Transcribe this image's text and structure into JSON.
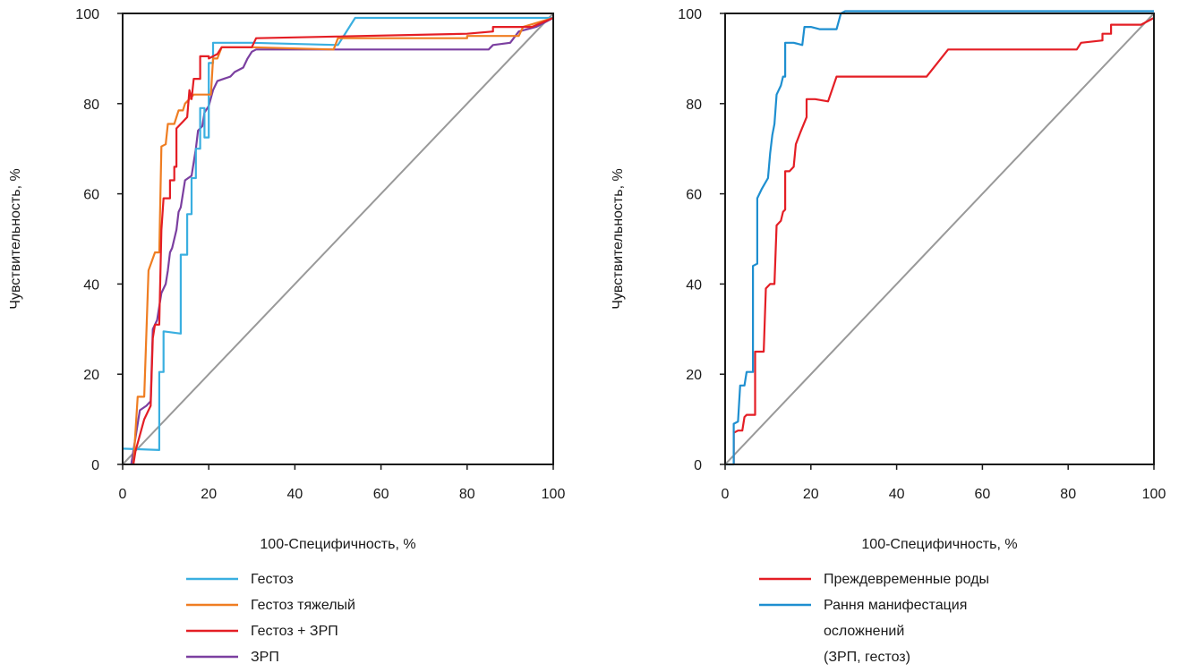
{
  "chart_data": [
    {
      "type": "line",
      "title": "",
      "xlabel": "100-Специфичность, %",
      "ylabel": "Чувствительность, %",
      "xlim": [
        0,
        100
      ],
      "ylim": [
        0,
        100
      ],
      "xticks": [
        "0",
        "20",
        "40",
        "60",
        "80",
        "100"
      ],
      "yticks": [
        "0",
        "20",
        "40",
        "60",
        "80",
        "100"
      ],
      "grid": false,
      "legend_position": "below",
      "reference_line": {
        "color": "#999999",
        "points": [
          [
            0,
            0
          ],
          [
            100,
            100
          ]
        ]
      },
      "series": [
        {
          "name": "Гестоз",
          "color": "#3aafe0",
          "points": [
            [
              0,
              3.5
            ],
            [
              8.5,
              3.2
            ],
            [
              8.5,
              20.5
            ],
            [
              9.5,
              20.5
            ],
            [
              9.5,
              29.5
            ],
            [
              13.5,
              29
            ],
            [
              13.5,
              46.5
            ],
            [
              15,
              46.5
            ],
            [
              15,
              55.5
            ],
            [
              16,
              55.5
            ],
            [
              16,
              63.5
            ],
            [
              17,
              63.5
            ],
            [
              17,
              70
            ],
            [
              18,
              70
            ],
            [
              18,
              79
            ],
            [
              19,
              79
            ],
            [
              19,
              72.5
            ],
            [
              20,
              72.5
            ],
            [
              20,
              89
            ],
            [
              21,
              89
            ],
            [
              21,
              93.5
            ],
            [
              22,
              93.5
            ],
            [
              30,
              93.5
            ],
            [
              50,
              93
            ],
            [
              54,
              99
            ],
            [
              100,
              99
            ]
          ]
        },
        {
          "name": "Гестоз тяжелый",
          "color": "#ef7d22",
          "points": [
            [
              2.5,
              0
            ],
            [
              3.5,
              15
            ],
            [
              5,
              15
            ],
            [
              6,
              43
            ],
            [
              7.5,
              47
            ],
            [
              8.5,
              47
            ],
            [
              9,
              70.5
            ],
            [
              10,
              71
            ],
            [
              10.5,
              75.5
            ],
            [
              12,
              75.5
            ],
            [
              13,
              78.5
            ],
            [
              14,
              78.5
            ],
            [
              14.5,
              80
            ],
            [
              15.5,
              81
            ],
            [
              16.5,
              82
            ],
            [
              20.5,
              82
            ],
            [
              21,
              90
            ],
            [
              22,
              90
            ],
            [
              23,
              92.5
            ],
            [
              30,
              92.5
            ],
            [
              49,
              92
            ],
            [
              50,
              94.5
            ],
            [
              80,
              94.5
            ],
            [
              80,
              95
            ],
            [
              92,
              95
            ],
            [
              93,
              97
            ],
            [
              100,
              99
            ]
          ]
        },
        {
          "name": "Гестоз + ЗРП",
          "color": "#e41e25",
          "points": [
            [
              2.5,
              0
            ],
            [
              3,
              3
            ],
            [
              5,
              10
            ],
            [
              6,
              12
            ],
            [
              6.5,
              13
            ],
            [
              7,
              28
            ],
            [
              7.5,
              31
            ],
            [
              8.5,
              31
            ],
            [
              9,
              52
            ],
            [
              9.5,
              59
            ],
            [
              11,
              59
            ],
            [
              11,
              63
            ],
            [
              12,
              63
            ],
            [
              12,
              66
            ],
            [
              12.5,
              66
            ],
            [
              12.5,
              74.5
            ],
            [
              14,
              76
            ],
            [
              15,
              77
            ],
            [
              15.5,
              83
            ],
            [
              16,
              81
            ],
            [
              16.5,
              85.5
            ],
            [
              18,
              85.5
            ],
            [
              18,
              90.5
            ],
            [
              20,
              90.5
            ],
            [
              20,
              90
            ],
            [
              21,
              90.5
            ],
            [
              22,
              91
            ],
            [
              23,
              92.5
            ],
            [
              26,
              92.5
            ],
            [
              30,
              92.5
            ],
            [
              31,
              94.5
            ],
            [
              80,
              95.5
            ],
            [
              86,
              96
            ],
            [
              86,
              97
            ],
            [
              90,
              97
            ],
            [
              95,
              97
            ],
            [
              100,
              99
            ]
          ]
        },
        {
          "name": "ЗРП",
          "color": "#7b3fa0",
          "points": [
            [
              2,
              0
            ],
            [
              4,
              12
            ],
            [
              5.5,
              13
            ],
            [
              6.5,
              14
            ],
            [
              7,
              30
            ],
            [
              8,
              32
            ],
            [
              9,
              38
            ],
            [
              10,
              40
            ],
            [
              10.5,
              43
            ],
            [
              11,
              47
            ],
            [
              11.5,
              48
            ],
            [
              12,
              50
            ],
            [
              12.5,
              52
            ],
            [
              13,
              56
            ],
            [
              13.5,
              57
            ],
            [
              14,
              60
            ],
            [
              14.5,
              63
            ],
            [
              16,
              64
            ],
            [
              17,
              70
            ],
            [
              17.5,
              74
            ],
            [
              18.5,
              75
            ],
            [
              19,
              78
            ],
            [
              20,
              79.5
            ],
            [
              21,
              83
            ],
            [
              22,
              85
            ],
            [
              23.5,
              85.5
            ],
            [
              25,
              86
            ],
            [
              26,
              87
            ],
            [
              27,
              87.5
            ],
            [
              28,
              88
            ],
            [
              29,
              90
            ],
            [
              30,
              91.5
            ],
            [
              31,
              92
            ],
            [
              85,
              92
            ],
            [
              86,
              93
            ],
            [
              90,
              93.5
            ],
            [
              92,
              96
            ],
            [
              96,
              97
            ],
            [
              100,
              99
            ]
          ]
        }
      ]
    },
    {
      "type": "line",
      "title": "",
      "xlabel": "100-Специфичность, %",
      "ylabel": "Чувствительность, %",
      "xlim": [
        0,
        100
      ],
      "ylim": [
        0,
        100
      ],
      "xticks": [
        "0",
        "20",
        "40",
        "60",
        "80",
        "100"
      ],
      "yticks": [
        "0",
        "20",
        "40",
        "60",
        "80",
        "100"
      ],
      "grid": false,
      "legend_position": "below",
      "reference_line": {
        "color": "#999999",
        "points": [
          [
            0,
            0
          ],
          [
            100,
            100
          ]
        ]
      },
      "series": [
        {
          "name": "Преждевременные роды",
          "color": "#e41e25",
          "points": [
            [
              2,
              0
            ],
            [
              2,
              7
            ],
            [
              3,
              7.5
            ],
            [
              4,
              7.5
            ],
            [
              4.5,
              10.5
            ],
            [
              5,
              11
            ],
            [
              7,
              11
            ],
            [
              7,
              25
            ],
            [
              8,
              25
            ],
            [
              9,
              25
            ],
            [
              9.5,
              39
            ],
            [
              10.5,
              40
            ],
            [
              11.5,
              40
            ],
            [
              12,
              53
            ],
            [
              13,
              54
            ],
            [
              13.5,
              56
            ],
            [
              14,
              56.5
            ],
            [
              14,
              65
            ],
            [
              15,
              65
            ],
            [
              16,
              66
            ],
            [
              16.5,
              71
            ],
            [
              17.5,
              73.5
            ],
            [
              19,
              77
            ],
            [
              19,
              81
            ],
            [
              21,
              81
            ],
            [
              24,
              80.5
            ],
            [
              26,
              86
            ],
            [
              47,
              86
            ],
            [
              52,
              92
            ],
            [
              82,
              92
            ],
            [
              83,
              93.5
            ],
            [
              88,
              94
            ],
            [
              88,
              95.5
            ],
            [
              90,
              95.5
            ],
            [
              90,
              97.5
            ],
            [
              92,
              97.5
            ],
            [
              97,
              97.5
            ],
            [
              100,
              99
            ]
          ]
        },
        {
          "name": "Рання манифестация осложнений (ЗРП, гестоз)",
          "color": "#1e8fd0",
          "points": [
            [
              0,
              0
            ],
            [
              2,
              0
            ],
            [
              2,
              9
            ],
            [
              3,
              9.5
            ],
            [
              3.5,
              17.5
            ],
            [
              4.5,
              17.5
            ],
            [
              5,
              20.5
            ],
            [
              6.5,
              20.5
            ],
            [
              6.5,
              44
            ],
            [
              7.5,
              44.5
            ],
            [
              7.5,
              59
            ],
            [
              8.5,
              61
            ],
            [
              10,
              63.5
            ],
            [
              10.5,
              69
            ],
            [
              11,
              73
            ],
            [
              11.5,
              75.5
            ],
            [
              12,
              82
            ],
            [
              13,
              84
            ],
            [
              13.5,
              86
            ],
            [
              14,
              86
            ],
            [
              14,
              93.5
            ],
            [
              16,
              93.5
            ],
            [
              18,
              93
            ],
            [
              18.5,
              97
            ],
            [
              20,
              97
            ],
            [
              22,
              96.5
            ],
            [
              26,
              96.5
            ],
            [
              27,
              100
            ],
            [
              28,
              100.5
            ],
            [
              100,
              100.5
            ]
          ]
        }
      ]
    }
  ],
  "legend_left": {
    "items": [
      {
        "label": "Гестоз",
        "color": "#3aafe0"
      },
      {
        "label": "Гестоз тяжелый",
        "color": "#ef7d22"
      },
      {
        "label": "Гестоз + ЗРП",
        "color": "#e41e25"
      },
      {
        "label": "ЗРП",
        "color": "#7b3fa0"
      }
    ]
  },
  "legend_right": {
    "items": [
      {
        "label": "Преждевременные роды",
        "color": "#e41e25",
        "lines": [
          "Преждевременные роды"
        ]
      },
      {
        "label": "Рання манифестация осложнений (ЗРП, гестоз)",
        "color": "#1e8fd0",
        "lines": [
          "Рання манифестация",
          "осложнений",
          "(ЗРП, гестоз)"
        ]
      }
    ]
  }
}
